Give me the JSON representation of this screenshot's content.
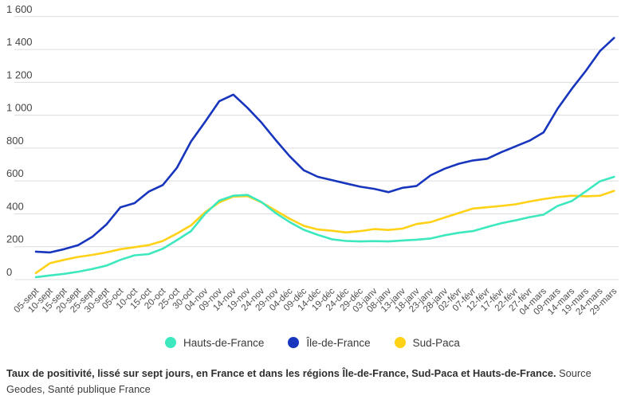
{
  "colors": {
    "grid": "#dcdcdc",
    "axis_text": "#4d4d4d",
    "y_text": "#444444"
  },
  "legend": {
    "items_note": "legend mirrors chart_data.series order"
  },
  "caption": {
    "bold": "Taux de positivité, lissé sur sept jours, en France et dans les régions Île-de-France, Sud-Paca et Hauts-de-France.",
    "source": " Source Geodes, Santé publique France"
  },
  "chart_data": {
    "type": "line",
    "title": "",
    "xlabel": "",
    "ylabel": "",
    "ylim": [
      0,
      1600
    ],
    "grid": "horizontal",
    "legend_position": "bottom",
    "y_ticks": [
      {
        "label": "1 600",
        "value": 1600
      },
      {
        "label": "1 400",
        "value": 1400
      },
      {
        "label": "1 200",
        "value": 1200
      },
      {
        "label": "1 000",
        "value": 1000
      },
      {
        "label": "800",
        "value": 800
      },
      {
        "label": "600",
        "value": 600
      },
      {
        "label": "400",
        "value": 400
      },
      {
        "label": "200",
        "value": 200
      },
      {
        "label": "0",
        "value": 0
      }
    ],
    "x": [
      "05-sept",
      "10-sept",
      "15-sept",
      "20-sept",
      "25-sept",
      "30-sept",
      "05-oct",
      "10-oct",
      "15-oct",
      "20-oct",
      "25-oct",
      "30-oct",
      "04-nov",
      "09-nov",
      "14-nov",
      "19-nov",
      "24-nov",
      "29-nov",
      "04-déc",
      "09-déc",
      "14-déc",
      "19-déc",
      "24-déc",
      "29-déc",
      "03-janv",
      "08-janv",
      "13-janv",
      "18-janv",
      "23-janv",
      "28-janv",
      "02-févr",
      "07-févr",
      "12-févr",
      "17-févr",
      "22-févr",
      "27-févr",
      "04-mars",
      "09-mars",
      "14-mars",
      "19-mars",
      "24-mars",
      "29-mars"
    ],
    "series": [
      {
        "name": "Hauts-de-France",
        "color": "#3ee8be",
        "values": [
          15,
          25,
          35,
          48,
          65,
          85,
          120,
          148,
          155,
          188,
          240,
          295,
          400,
          480,
          510,
          515,
          472,
          405,
          350,
          303,
          272,
          245,
          235,
          232,
          234,
          232,
          238,
          243,
          250,
          270,
          285,
          295,
          320,
          343,
          360,
          380,
          395,
          448,
          478,
          537,
          598,
          625
        ]
      },
      {
        "name": "Île-de-France",
        "color": "#1735bd",
        "values": [
          170,
          165,
          185,
          210,
          260,
          335,
          440,
          465,
          535,
          575,
          680,
          840,
          960,
          1085,
          1125,
          1045,
          955,
          850,
          750,
          665,
          625,
          605,
          585,
          565,
          552,
          532,
          558,
          570,
          635,
          675,
          705,
          725,
          735,
          775,
          810,
          845,
          895,
          1040,
          1160,
          1270,
          1390,
          1470
        ]
      },
      {
        "name": "Sud-Paca",
        "color": "#ffd217",
        "values": [
          40,
          100,
          120,
          138,
          150,
          165,
          185,
          197,
          210,
          235,
          280,
          330,
          410,
          470,
          505,
          508,
          470,
          420,
          370,
          327,
          305,
          297,
          287,
          295,
          307,
          302,
          310,
          338,
          350,
          378,
          405,
          432,
          440,
          448,
          458,
          475,
          490,
          502,
          510,
          507,
          510,
          540
        ]
      }
    ]
  }
}
